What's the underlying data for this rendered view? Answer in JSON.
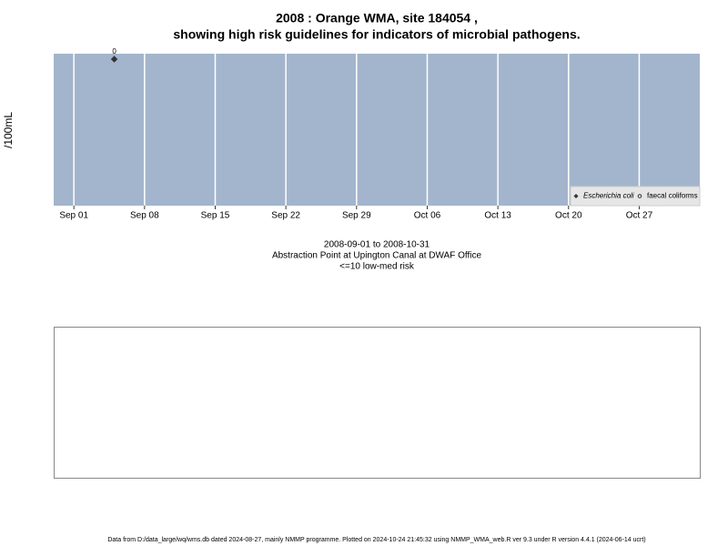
{
  "chart_data": {
    "type": "scatter",
    "title": [
      "2008 : Orange WMA, site 184054 ,",
      "showing high risk guidelines for indicators of microbial pathogens."
    ],
    "ylabel": "/100mL",
    "subtitle": [
      "2008-09-01 to 2008-10-31",
      "Abstraction Point at Upington Canal at DWAF Office",
      "<=10 low-med risk"
    ],
    "xlim": [
      "Aug 30",
      "Nov 02"
    ],
    "xticks": [
      "Sep 01",
      "Sep 08",
      "Sep 15",
      "Sep 22",
      "Sep 29",
      "Oct 06",
      "Oct 13",
      "Oct 20",
      "Oct 27"
    ],
    "series": [
      {
        "name": "Escherichia coli",
        "color": "#333333",
        "marker": "diamond",
        "x": [
          "Sep 05"
        ],
        "values": [
          0
        ]
      },
      {
        "name": "faecal coliforms",
        "color": "#333333",
        "marker": "open-circle",
        "x": [],
        "values": []
      }
    ],
    "data_labels": true,
    "grid": true,
    "legend": "bottom-right",
    "background": "#a3b5cc",
    "footer": "Data from D:/data_large/wq/wms.db dated 2024-08-27, mainly NMMP programme. Plotted on 2024-10-24 21:45:32 using NMMP_WMA_web.R ver 9.3 under R version 4.4.1 (2024-06-14 ucrt)"
  }
}
